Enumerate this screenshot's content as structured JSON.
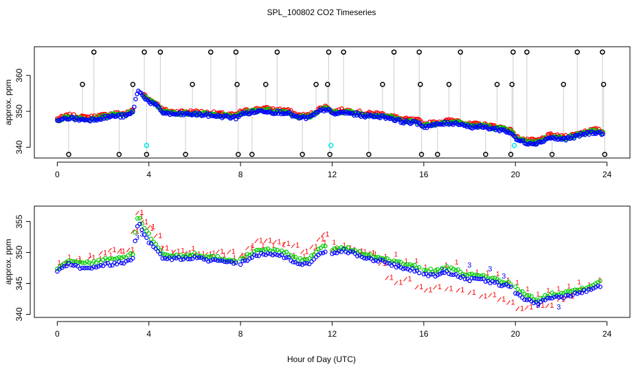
{
  "title": "SPL_100802  CO2 Timeseries",
  "xlabel": "Hour of Day (UTC)",
  "colors": {
    "red": "#ff0000",
    "green": "#00cc00",
    "blue": "#0000ff",
    "black": "#000000",
    "cyan": "#00e5e5",
    "spike": "#9a9a9a"
  },
  "chart_data": [
    {
      "type": "scatter",
      "name": "top-panel",
      "ylabel": "approx. ppm",
      "xlim": [
        -1,
        25
      ],
      "ylim": [
        337,
        368
      ],
      "xticks": [
        0,
        4,
        8,
        12,
        16,
        20,
        24
      ],
      "xtick_labels": [
        "0",
        "4",
        "8",
        "12",
        "16",
        "20",
        "24"
      ],
      "yticks": [
        340,
        350,
        360
      ],
      "ytick_labels": [
        "340",
        "350",
        "360"
      ],
      "baseline": [
        [
          0,
          347.5
        ],
        [
          0.5,
          348.5
        ],
        [
          1,
          348
        ],
        [
          1.5,
          348
        ],
        [
          2,
          348.5
        ],
        [
          2.5,
          349
        ],
        [
          3,
          349
        ],
        [
          3.3,
          350
        ],
        [
          3.5,
          356
        ],
        [
          3.7,
          355
        ],
        [
          4,
          353
        ],
        [
          4.3,
          352
        ],
        [
          4.6,
          350
        ],
        [
          5,
          349.5
        ],
        [
          6,
          349.5
        ],
        [
          7,
          349
        ],
        [
          7.8,
          348.5
        ],
        [
          8,
          349.5
        ],
        [
          8.5,
          350
        ],
        [
          9,
          350.5
        ],
        [
          9.5,
          350
        ],
        [
          10,
          350
        ],
        [
          10.5,
          348.5
        ],
        [
          11,
          348.5
        ],
        [
          11.5,
          350.5
        ],
        [
          11.8,
          351
        ],
        [
          12,
          349.5
        ],
        [
          12.5,
          350
        ],
        [
          13,
          349.5
        ],
        [
          13.5,
          349
        ],
        [
          14,
          349
        ],
        [
          14.5,
          348.5
        ],
        [
          15,
          347.5
        ],
        [
          15.8,
          347
        ],
        [
          16,
          346
        ],
        [
          16.5,
          346.5
        ],
        [
          17,
          347
        ],
        [
          17.5,
          347
        ],
        [
          18,
          346
        ],
        [
          18.5,
          346
        ],
        [
          19,
          345.5
        ],
        [
          19.5,
          345
        ],
        [
          19.9,
          344
        ],
        [
          20,
          342.5
        ],
        [
          20.5,
          341.5
        ],
        [
          21,
          341.5
        ],
        [
          21.5,
          343
        ],
        [
          22,
          342.5
        ],
        [
          22.5,
          343
        ],
        [
          23,
          344
        ],
        [
          23.5,
          344.5
        ],
        [
          23.8,
          344
        ]
      ],
      "outlier_hours": [
        0.5,
        1.1,
        1.6,
        2.7,
        3.3,
        3.8,
        3.9,
        4.5,
        5.6,
        5.9,
        6.7,
        7.8,
        7.85,
        7.9,
        8.5,
        9.1,
        9.6,
        10.7,
        11.3,
        11.8,
        11.85,
        11.9,
        12.5,
        13.6,
        14.2,
        14.7,
        15.8,
        15.85,
        15.9,
        16.6,
        17.1,
        17.6,
        18.7,
        19.2,
        19.8,
        19.85,
        19.9,
        20.5,
        21.6,
        22.1,
        22.7,
        23.8,
        23.85,
        23.9
      ],
      "outlier_low": [
        0.5,
        2.7,
        3.9,
        5.6,
        7.9,
        8.5,
        10.7,
        11.9,
        13.6,
        15.9,
        16.6,
        18.7,
        19.8,
        21.6,
        23.9
      ],
      "outlier_mid": [
        1.1,
        3.3,
        5.9,
        7.85,
        9.1,
        11.3,
        11.8,
        14.2,
        15.85,
        17.1,
        19.2,
        19.85,
        22.1,
        23.85
      ],
      "outlier_low_value": 338,
      "outlier_mid_value": 357.5,
      "outlier_high_value": 366.5,
      "cyan_points": [
        [
          3.9,
          340.5
        ],
        [
          11.95,
          340.5
        ],
        [
          19.95,
          340.5
        ]
      ],
      "series": [
        {
          "name": "red",
          "color": "#ff0000",
          "offset": 0.4
        },
        {
          "name": "green",
          "color": "#00cc00",
          "offset": 0.0
        },
        {
          "name": "blue",
          "color": "#0000ff",
          "offset": -0.3
        }
      ]
    },
    {
      "type": "scatter",
      "name": "bottom-panel",
      "ylabel": "approx. ppm",
      "xlim": [
        -1,
        25
      ],
      "ylim": [
        339.5,
        357.5
      ],
      "xticks": [
        0,
        4,
        8,
        12,
        16,
        20,
        24
      ],
      "xtick_labels": [
        "0",
        "4",
        "8",
        "12",
        "16",
        "20",
        "24"
      ],
      "yticks": [
        340,
        345,
        350,
        355
      ],
      "ytick_labels": [
        "340",
        "345",
        "350",
        "355"
      ],
      "series": [
        {
          "name": "1",
          "glyph": "1",
          "color": "#ff0000",
          "points": [
            [
              0.3,
              348.3
            ],
            [
              0.9,
              348.8
            ],
            [
              1.5,
              349.2
            ],
            [
              2,
              350
            ],
            [
              2.4,
              350.5
            ],
            [
              2.8,
              350.3
            ],
            [
              3.2,
              350.5
            ],
            [
              3.4,
              353.5
            ],
            [
              3.6,
              356.5
            ],
            [
              3.8,
              355
            ],
            [
              4.1,
              354.2
            ],
            [
              4.4,
              352.8
            ],
            [
              4.7,
              350.8
            ],
            [
              5.2,
              350.2
            ],
            [
              5.7,
              350
            ],
            [
              6.1,
              349.8
            ],
            [
              6.6,
              349.8
            ],
            [
              7.1,
              350.2
            ],
            [
              7.6,
              350.2
            ],
            [
              8.1,
              349.5
            ],
            [
              8.4,
              350.8
            ],
            [
              8.8,
              352
            ],
            [
              9.2,
              352
            ],
            [
              9.6,
              351.8
            ],
            [
              10,
              351.5
            ],
            [
              10.4,
              351.2
            ],
            [
              10.8,
              350.2
            ],
            [
              11.2,
              351
            ],
            [
              11.5,
              352.2
            ],
            [
              11.7,
              353
            ],
            [
              12.1,
              350.5
            ],
            [
              12.7,
              350.8
            ],
            [
              13.2,
              350.3
            ],
            [
              13.7,
              350
            ],
            [
              14.2,
              348.3
            ],
            [
              14.5,
              346
            ],
            [
              14.9,
              345.2
            ],
            [
              15.3,
              345.8
            ],
            [
              15.8,
              344.5
            ],
            [
              16.2,
              344
            ],
            [
              16.6,
              344.5
            ],
            [
              17.1,
              344.2
            ],
            [
              17.6,
              344
            ],
            [
              18.1,
              343.6
            ],
            [
              18.6,
              343
            ],
            [
              19,
              343.2
            ],
            [
              19.4,
              342.5
            ],
            [
              19.8,
              342
            ],
            [
              20.2,
              341
            ],
            [
              20.6,
              341.2
            ],
            [
              21.1,
              341.5
            ],
            [
              21.5,
              341.5
            ],
            [
              22,
              342.5
            ],
            [
              22.4,
              343
            ],
            [
              22.8,
              344
            ]
          ]
        },
        {
          "name": "2",
          "glyph": "o",
          "color": "#00cc00",
          "lines": [
            [
              [
                0,
                347.5
              ],
              [
                0.5,
                348.8
              ],
              [
                1,
                348.3
              ],
              [
                1.5,
                348.3
              ],
              [
                2,
                348.8
              ],
              [
                2.5,
                349
              ],
              [
                3,
                349.3
              ],
              [
                3.3,
                349.8
              ],
              [
                3.45,
                355
              ],
              [
                3.55,
                356
              ],
              [
                3.8,
                354
              ],
              [
                4,
                353
              ],
              [
                4.3,
                351.2
              ],
              [
                4.6,
                349.8
              ],
              [
                5,
                349.5
              ],
              [
                5.5,
                349.5
              ],
              [
                6,
                349.8
              ],
              [
                6.5,
                349.3
              ],
              [
                7,
                349.2
              ],
              [
                7.5,
                348.8
              ],
              [
                7.85,
                348.8
              ]
            ],
            [
              [
                8,
                348.8
              ],
              [
                8.5,
                350
              ],
              [
                9,
                350.5
              ],
              [
                9.5,
                350.3
              ],
              [
                10,
                350
              ],
              [
                10.5,
                348.8
              ],
              [
                11,
                349
              ],
              [
                11.5,
                350.8
              ],
              [
                11.75,
                351
              ]
            ],
            [
              [
                12,
                350.5
              ],
              [
                12.5,
                350.8
              ],
              [
                13,
                350.3
              ],
              [
                13.5,
                349.5
              ],
              [
                14,
                349.3
              ],
              [
                14.5,
                348.8
              ],
              [
                15,
                348.3
              ],
              [
                15.5,
                347.8
              ],
              [
                15.8,
                347.5
              ]
            ],
            [
              [
                16,
                347.3
              ],
              [
                16.5,
                347
              ],
              [
                17,
                347.5
              ],
              [
                17.5,
                347
              ],
              [
                18,
                346.3
              ],
              [
                18.5,
                346.3
              ],
              [
                19,
                345.8
              ],
              [
                19.5,
                345.3
              ],
              [
                19.85,
                345
              ]
            ],
            [
              [
                20,
                344.3
              ],
              [
                20.5,
                343
              ],
              [
                21,
                342.3
              ],
              [
                21.5,
                343.3
              ],
              [
                22,
                343.5
              ],
              [
                22.5,
                343.8
              ],
              [
                23,
                344.3
              ],
              [
                23.5,
                345
              ],
              [
                23.8,
                345.3
              ]
            ]
          ]
        },
        {
          "name": "3",
          "glyph": "o",
          "color": "#0000ff",
          "glyph_alt": "3",
          "lines": [
            [
              [
                0,
                347
              ],
              [
                0.5,
                348.3
              ],
              [
                1,
                347.6
              ],
              [
                1.5,
                347.6
              ],
              [
                2,
                348
              ],
              [
                2.5,
                348.2
              ],
              [
                3,
                348.5
              ],
              [
                3.3,
                349
              ],
              [
                3.45,
                353.5
              ],
              [
                3.55,
                355
              ],
              [
                3.8,
                353
              ],
              [
                4,
                351.8
              ],
              [
                4.3,
                350.5
              ],
              [
                4.6,
                349.2
              ],
              [
                5,
                349
              ],
              [
                5.5,
                349
              ],
              [
                6,
                349.2
              ],
              [
                6.5,
                348.8
              ],
              [
                7,
                348.6
              ],
              [
                7.5,
                348.3
              ],
              [
                7.85,
                348.3
              ]
            ],
            [
              [
                8,
                348.2
              ],
              [
                8.5,
                349.3
              ],
              [
                9,
                349.8
              ],
              [
                9.5,
                349.6
              ],
              [
                10,
                349.3
              ],
              [
                10.5,
                348
              ],
              [
                11,
                348.3
              ],
              [
                11.5,
                350
              ],
              [
                11.75,
                350.3
              ]
            ],
            [
              [
                12,
                350
              ],
              [
                12.5,
                350.3
              ],
              [
                13,
                349.8
              ],
              [
                13.5,
                349
              ],
              [
                14,
                348.8
              ],
              [
                14.5,
                348.2
              ],
              [
                15,
                347.6
              ],
              [
                15.5,
                347.2
              ],
              [
                15.8,
                346.8
              ]
            ],
            [
              [
                16,
                346.5
              ],
              [
                16.5,
                346.3
              ],
              [
                17,
                346.8
              ],
              [
                17.5,
                346.3
              ],
              [
                18,
                345.6
              ],
              [
                18.5,
                345.6
              ],
              [
                19,
                345.2
              ],
              [
                19.5,
                344.7
              ],
              [
                19.85,
                344.3
              ]
            ],
            [
              [
                20,
                343.5
              ],
              [
                20.5,
                342.3
              ],
              [
                21,
                341.7
              ],
              [
                21.5,
                342.7
              ],
              [
                22,
                342.8
              ],
              [
                22.5,
                343.2
              ],
              [
                23,
                343.7
              ],
              [
                23.5,
                344.5
              ],
              [
                23.8,
                344.7
              ]
            ]
          ],
          "glyph_points": [
            [
              3.6,
              353
            ],
            [
              3.4,
              352.5
            ],
            [
              14.8,
              348
            ],
            [
              16.7,
              347.2
            ],
            [
              17.9,
              348
            ],
            [
              18.8,
              347.4
            ],
            [
              19.4,
              346.2
            ],
            [
              20.9,
              341.5
            ],
            [
              21.8,
              341.2
            ]
          ]
        }
      ]
    }
  ]
}
